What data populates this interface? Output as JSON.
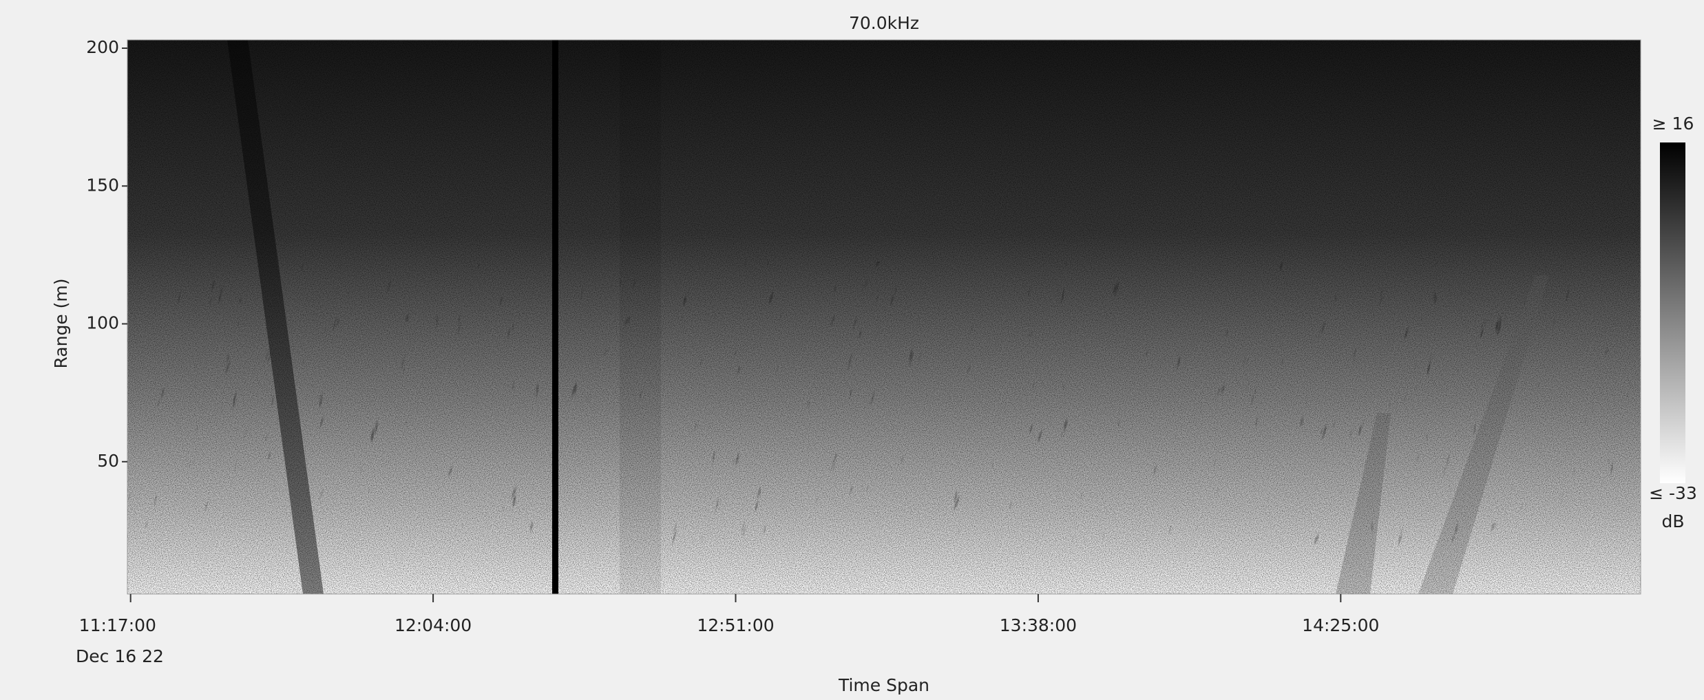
{
  "chart_data": {
    "type": "echogram",
    "title": "70.0kHz",
    "xlabel": "Time Span",
    "ylabel": "Range (m)",
    "date_label": "Dec 16 22",
    "xlim": [
      676.5,
      911.6
    ],
    "xticks": [
      {
        "value": 677,
        "label": "11:17:00"
      },
      {
        "value": 724,
        "label": "12:04:00"
      },
      {
        "value": 771,
        "label": "12:51:00"
      },
      {
        "value": 818,
        "label": "13:38:00"
      },
      {
        "value": 865,
        "label": "14:25:00"
      }
    ],
    "ylim": [
      2,
      203
    ],
    "yticks": [
      50,
      100,
      150,
      200
    ],
    "colorbar": {
      "max_label": "≥ 16",
      "min_label": "≤ -33",
      "unit": "dB"
    }
  }
}
